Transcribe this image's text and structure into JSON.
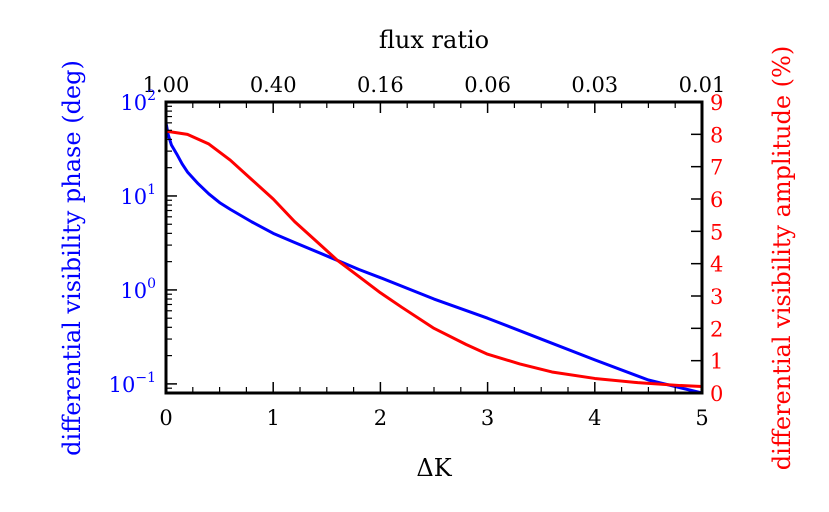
{
  "chart_data": {
    "type": "line",
    "xlabel": "ΔK",
    "x2label": "flux ratio",
    "ylabel": "differential visibility phase (deg)",
    "y2label": "differential visibility amplitude (%)",
    "xlim": [
      0,
      5
    ],
    "ylim": [
      0.08,
      100
    ],
    "yscale": "log",
    "y2lim": [
      0,
      9
    ],
    "grid": false,
    "x_ticks": [
      "0",
      "1",
      "2",
      "3",
      "4",
      "5"
    ],
    "x2_ticks": [
      "1.00",
      "0.40",
      "0.16",
      "0.06",
      "0.03",
      "0.01"
    ],
    "y_ticks": [
      {
        "value": 0.1,
        "base": "10",
        "exp": "−1"
      },
      {
        "value": 1,
        "base": "10",
        "exp": "0"
      },
      {
        "value": 10,
        "base": "10",
        "exp": "1"
      },
      {
        "value": 100,
        "base": "10",
        "exp": "2"
      }
    ],
    "y2_ticks": [
      "0",
      "1",
      "2",
      "3",
      "4",
      "5",
      "6",
      "7",
      "8",
      "9"
    ],
    "colors": {
      "phase": "#0000ff",
      "amplitude": "#ff0000",
      "axes": "#000000"
    },
    "series": [
      {
        "axis": "left",
        "color": "#0000ff",
        "x": [
          0,
          0.02,
          0.05,
          0.1,
          0.15,
          0.2,
          0.3,
          0.4,
          0.5,
          0.6,
          0.8,
          1.0,
          1.2,
          1.5,
          1.8,
          2.0,
          2.5,
          3.0,
          3.5,
          4.0,
          4.5,
          5.0
        ],
        "y": [
          60,
          45,
          35,
          28,
          22,
          18,
          13.5,
          10.5,
          8.5,
          7.2,
          5.3,
          4.0,
          3.2,
          2.3,
          1.65,
          1.35,
          0.8,
          0.5,
          0.3,
          0.18,
          0.11,
          0.075
        ]
      },
      {
        "axis": "right",
        "color": "#ff0000",
        "x": [
          0,
          0.2,
          0.4,
          0.6,
          0.8,
          1.0,
          1.2,
          1.4,
          1.6,
          1.8,
          2.0,
          2.2,
          2.5,
          2.8,
          3.0,
          3.3,
          3.6,
          4.0,
          4.4,
          4.8,
          5.0
        ],
        "y": [
          8.1,
          8.0,
          7.7,
          7.2,
          6.6,
          6.0,
          5.3,
          4.7,
          4.1,
          3.6,
          3.1,
          2.65,
          2.0,
          1.5,
          1.2,
          0.9,
          0.65,
          0.45,
          0.32,
          0.23,
          0.2
        ]
      }
    ]
  }
}
